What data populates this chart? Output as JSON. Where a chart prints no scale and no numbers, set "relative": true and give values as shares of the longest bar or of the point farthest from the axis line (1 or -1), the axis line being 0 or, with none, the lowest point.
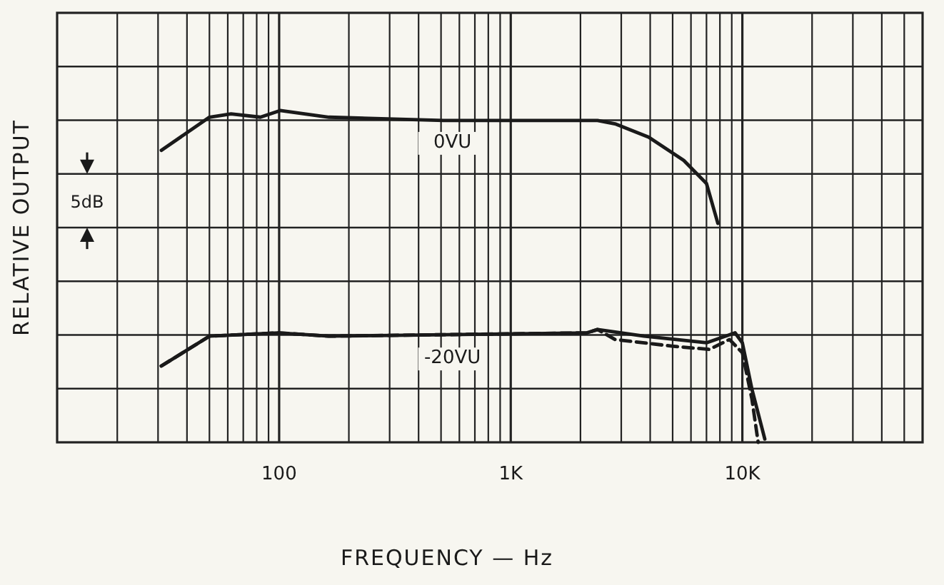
{
  "chart_data": {
    "type": "line",
    "relative": true,
    "xlabel": "FREQUENCY — Hz",
    "ylabel": "RELATIVE OUTPUT",
    "log": "x",
    "grid": true,
    "marker": "none",
    "xlim": [
      11,
      60000
    ],
    "xticks": [
      {
        "value": 20,
        "label": null
      },
      {
        "value": 30,
        "label": null
      },
      {
        "value": 40,
        "label": null
      },
      {
        "value": 50,
        "label": null
      },
      {
        "value": 60,
        "label": null
      },
      {
        "value": 70,
        "label": null
      },
      {
        "value": 80,
        "label": null
      },
      {
        "value": 90,
        "label": null
      },
      {
        "value": 100,
        "label": "100"
      },
      {
        "value": 200,
        "label": null
      },
      {
        "value": 300,
        "label": null
      },
      {
        "value": 400,
        "label": null
      },
      {
        "value": 500,
        "label": null
      },
      {
        "value": 600,
        "label": null
      },
      {
        "value": 700,
        "label": null
      },
      {
        "value": 800,
        "label": null
      },
      {
        "value": 900,
        "label": null
      },
      {
        "value": 1000,
        "label": "1K"
      },
      {
        "value": 2000,
        "label": null
      },
      {
        "value": 3000,
        "label": null
      },
      {
        "value": 4000,
        "label": null
      },
      {
        "value": 5000,
        "label": null
      },
      {
        "value": 6000,
        "label": null
      },
      {
        "value": 7000,
        "label": null
      },
      {
        "value": 8000,
        "label": null
      },
      {
        "value": 9000,
        "label": null
      },
      {
        "value": 10000,
        "label": "10K"
      },
      {
        "value": 20000,
        "label": null
      },
      {
        "value": 30000,
        "label": null
      },
      {
        "value": 40000,
        "label": null
      },
      {
        "value": 50000,
        "label": null
      }
    ],
    "annotations": [
      "5dB"
    ],
    "series": [
      {
        "name": "0VU",
        "color": "#1a1a1a",
        "line_style": "solid",
        "x": [
          31,
          50,
          62,
          83,
          101,
          164,
          513,
          2370,
          2820,
          3940,
          5580,
          7000,
          7840
        ],
        "values": [
          0.88,
          0.98,
          0.99,
          0.98,
          1,
          0.98,
          0.97,
          0.97,
          0.96,
          0.92,
          0.85,
          0.78,
          0.66
        ]
      },
      {
        "name": "-20VU",
        "color": "#1a1a1a",
        "line_style": "solid",
        "x": [
          31,
          50,
          99,
          164,
          2130,
          2370,
          3760,
          7000,
          9300,
          10000,
          11000,
          12500
        ],
        "values": [
          0.23,
          0.32,
          0.33,
          0.32,
          0.33,
          0.34,
          0.32,
          0.3,
          0.33,
          0.3,
          0.16,
          0.01
        ]
      },
      {
        "color": "#1a1a1a",
        "line_style": "dashed",
        "x": [
          31,
          50,
          99,
          164,
          2130,
          2370,
          2820,
          4960,
          7200,
          8800,
          10000,
          11000,
          11700
        ],
        "values": [
          0.23,
          0.32,
          0.33,
          0.32,
          0.33,
          0.34,
          0.31,
          0.29,
          0.28,
          0.31,
          0.27,
          0.13,
          0
        ]
      }
    ]
  }
}
